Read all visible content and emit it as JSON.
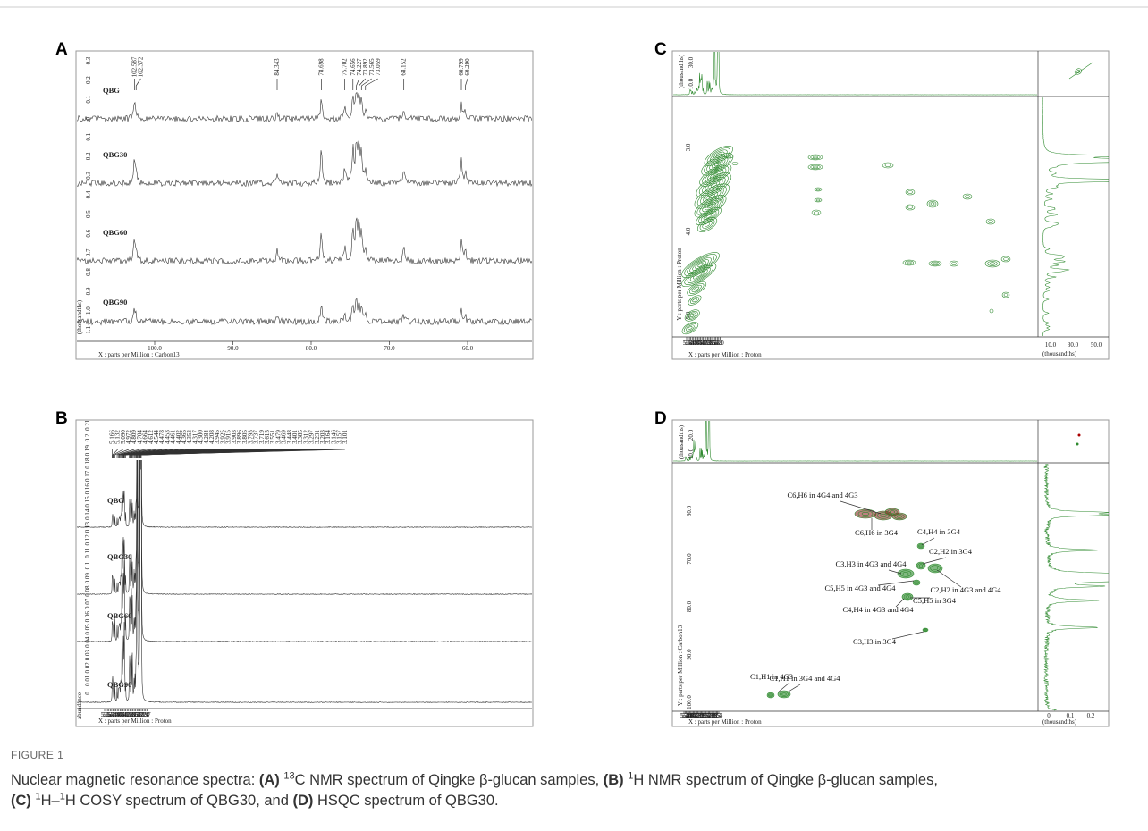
{
  "panels": [
    {
      "letter": "A",
      "samples": [
        "QBG",
        "QBG30",
        "QBG60",
        "QBG90"
      ],
      "peak_labels": [
        "102.587",
        "102.372",
        "84.343",
        "78.698",
        "75.702",
        "74.656",
        "74.227",
        "73.892",
        "73.565",
        "73.059",
        "68.152",
        "60.799",
        "60.290"
      ],
      "y_ticks": [
        "0.3",
        "0.2",
        "0.1",
        "0",
        "-0.1",
        "-0.2",
        "-0.3",
        "-0.4",
        "-0.5",
        "-0.6",
        "-0.7",
        "-0.8",
        "-0.9",
        "-1.0",
        "-1.1"
      ],
      "y_unit": "(thousandths)",
      "x_ticks": [
        "100.0",
        "90.0",
        "80.0",
        "70.0",
        "60.0"
      ],
      "x_label": "X : parts per Million : Carbon13"
    },
    {
      "letter": "B",
      "samples": [
        "QBG",
        "QBG30",
        "QBG60",
        "QBG90"
      ],
      "peak_labels": [
        "5.166",
        "5.132",
        "5.090",
        "4.972",
        "4.809",
        "4.704",
        "4.664",
        "4.612",
        "4.544",
        "4.478",
        "4.453",
        "4.461",
        "4.402",
        "4.365",
        "4.353",
        "4.317",
        "4.300",
        "4.284",
        "4.208",
        "3.945",
        "3.925",
        "3.915",
        "3.903",
        "3.896",
        "3.805",
        "3.793",
        "3.737",
        "3.719",
        "3.615",
        "3.551",
        "3.479",
        "3.469",
        "3.448",
        "3.401",
        "3.385",
        "3.312",
        "3.297",
        "3.231",
        "3.203",
        "3.164",
        "3.146",
        "3.157",
        "3.101"
      ],
      "y_ticks": [
        "0",
        "0.01",
        "0.02",
        "0.03",
        "0.04",
        "0.05",
        "0.06",
        "0.07",
        "0.08",
        "0.09",
        "0.1",
        "0.11",
        "0.12",
        "0.13",
        "0.14",
        "0.15",
        "0.16",
        "0.17",
        "0.18",
        "0.19",
        "0.2",
        "0.21"
      ],
      "y_unit": "abundance",
      "x_ticks": [
        "5.7",
        "5.6",
        "5.5",
        "5.4",
        "5.3",
        "5.2",
        "5.1",
        "5.0",
        "4.9",
        "4.8",
        "4.7",
        "4.6",
        "4.5",
        "4.4",
        "4.3",
        "4.2",
        "4.1",
        "4.0",
        "3.9",
        "3.8",
        "3.7",
        "3.6",
        "3.5",
        "3.4",
        "3.3",
        "3.2",
        "3.1",
        "3.0",
        "2.9",
        "2.8",
        "2.7"
      ],
      "x_label": "X : parts per Million : Proton"
    },
    {
      "letter": "C",
      "x_ticks": [
        "5.4",
        "5.3",
        "5.2",
        "5.1",
        "5.0",
        "4.9",
        "4.8",
        "4.7",
        "4.6",
        "4.5",
        "4.4",
        "4.3",
        "4.2",
        "4.1",
        "4.0",
        "3.9",
        "3.8",
        "3.7",
        "3.6",
        "3.5",
        "3.4",
        "3.3",
        "3.2",
        "3.1",
        "3.0"
      ],
      "x_label": "X : parts per Million : Proton",
      "y_ticks": [
        "3.0",
        "4.0",
        "5.0"
      ],
      "y_label": "Y : parts per Million : Proton",
      "top_ticks": [
        "10.0",
        "30.0"
      ],
      "top_unit": "(thousandths)",
      "right_ticks": [
        "10.0",
        "30.0",
        "50.0"
      ],
      "right_unit": "(thousandths)"
    },
    {
      "letter": "D",
      "x_ticks": [
        "5.3",
        "5.2",
        "5.1",
        "5.0",
        "4.9",
        "4.8",
        "4.7",
        "4.6",
        "4.5",
        "4.4",
        "4.3",
        "4.2",
        "4.1",
        "4.0",
        "3.9",
        "3.8",
        "3.7",
        "3.6",
        "3.5",
        "3.4",
        "3.3",
        "3.2",
        "3.1",
        "3.0",
        "2.9",
        "2.8",
        "2.7",
        "2.6",
        "2.5",
        "2.4",
        "2.3"
      ],
      "x_label": "X : parts per Million : Proton",
      "y_ticks": [
        "60.0",
        "70.0",
        "80.0",
        "90.0",
        "100.0"
      ],
      "y_label": "Y : parts per Million : Carbon13",
      "top_ticks": [
        "10.0",
        "20.0"
      ],
      "top_unit": "(thousandths)",
      "right_ticks": [
        "0",
        "0.1",
        "0.2"
      ],
      "right_unit": "(thousandths)",
      "annotations": [
        "C6,H6 in 4G4 and 4G3",
        "C6,H6 in 3G4",
        "C4,H4 in 3G4",
        "C2,H2 in 3G4",
        "C3,H3 in 4G3 and 4G4",
        "C2,H2 in 4G3 and 4G4",
        "C5,H5 in 4G3 and 4G4",
        "C5,H5 in 3G4",
        "C4,H4 in 4G3 and 4G4",
        "C3,H3 in 3G4",
        "C1,H1 in 4G3",
        "C1,H1 in 3G4 and 4G4"
      ]
    }
  ],
  "caption": {
    "label": "FIGURE 1",
    "parts": [
      "Nuclear magnetic resonance spectra: ",
      "(A)",
      "13",
      "C NMR spectrum of Qingke β-glucan samples, ",
      "(B)",
      "1",
      "H NMR spectrum of Qingke β-glucan samples,",
      "(C)",
      "1",
      "H–",
      "1",
      "H COSY spectrum of QBG30, and ",
      "(D)",
      " HSQC spectrum of QBG30."
    ]
  }
}
